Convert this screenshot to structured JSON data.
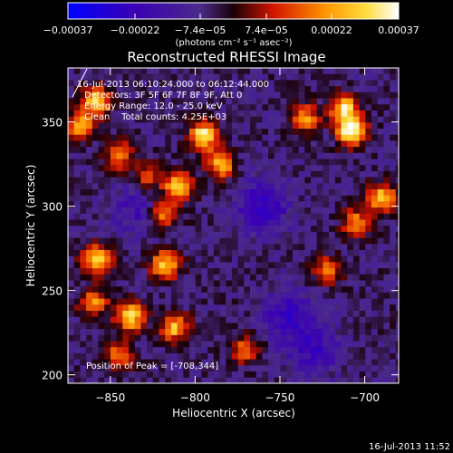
{
  "chart_data": {
    "type": "heatmap",
    "title": "Reconstructed RHESSI Image",
    "xlabel": "Heliocentric X (arcsec)",
    "ylabel": "Heliocentric Y (arcsec)",
    "xlim": [
      -875,
      -680
    ],
    "ylim": [
      195,
      382
    ],
    "x_ticks": [
      -850,
      -800,
      -750,
      -700
    ],
    "y_ticks": [
      200,
      250,
      300,
      350
    ],
    "grid": false,
    "colorbar": {
      "ticks": [
        -0.00037,
        -0.00022,
        -7.4e-05,
        7.4e-05,
        0.00022,
        0.00037
      ],
      "tick_labels": [
        "-0.00037",
        "-0.00022",
        "-7.4e-05",
        "7.4e-05",
        "0.00022",
        "0.00037"
      ],
      "range": [
        -0.00037,
        0.00037
      ],
      "unit_label": "(photons cm⁻² s⁻¹ asec⁻²)"
    },
    "annotations": [
      "16-Jul-2013 06:10:24.000 to 06:12:44.000",
      "Detectors: 3F 5F 6F 7F 8F 9F, Att 0",
      "Energy Range: 12.0 - 25.0 keV",
      "Clean    Total counts: 4.25E+03"
    ],
    "peak_label": "Position of Peak = [-708,344]",
    "peak": [
      -708,
      344
    ],
    "sources": [
      {
        "x": -708,
        "y": 344,
        "amp": 1.0
      },
      {
        "x": -712,
        "y": 358,
        "amp": 0.8
      },
      {
        "x": -795,
        "y": 342,
        "amp": 0.9
      },
      {
        "x": -785,
        "y": 325,
        "amp": 0.7
      },
      {
        "x": -810,
        "y": 312,
        "amp": 0.75
      },
      {
        "x": -818,
        "y": 296,
        "amp": 0.6
      },
      {
        "x": -858,
        "y": 362,
        "amp": 0.75
      },
      {
        "x": -868,
        "y": 348,
        "amp": 0.65
      },
      {
        "x": -845,
        "y": 330,
        "amp": 0.55
      },
      {
        "x": -858,
        "y": 268,
        "amp": 0.8
      },
      {
        "x": -818,
        "y": 265,
        "amp": 0.75
      },
      {
        "x": -838,
        "y": 235,
        "amp": 0.85
      },
      {
        "x": -812,
        "y": 228,
        "amp": 0.7
      },
      {
        "x": -845,
        "y": 212,
        "amp": 0.55
      },
      {
        "x": -860,
        "y": 243,
        "amp": 0.6
      },
      {
        "x": -690,
        "y": 305,
        "amp": 0.75
      },
      {
        "x": -705,
        "y": 290,
        "amp": 0.55
      },
      {
        "x": -722,
        "y": 262,
        "amp": 0.55
      },
      {
        "x": -735,
        "y": 352,
        "amp": 0.6
      },
      {
        "x": -770,
        "y": 215,
        "amp": 0.5
      },
      {
        "x": -828,
        "y": 318,
        "amp": 0.45
      }
    ],
    "dark_regions": [
      {
        "x": -760,
        "y": 300,
        "amp": 0.9
      },
      {
        "x": -745,
        "y": 235,
        "amp": 0.8
      },
      {
        "x": -835,
        "y": 298,
        "amp": 0.55
      },
      {
        "x": -730,
        "y": 215,
        "amp": 0.7
      }
    ]
  },
  "footer": {
    "timestamp": "16-Jul-2013 11:52"
  },
  "colors": {
    "background": "#000000",
    "text": "#ffffff",
    "colormap": [
      "#0000ff",
      "#3a00b4",
      "#4a2a8a",
      "#1a0008",
      "#d21400",
      "#ff9600",
      "#ffdc3c",
      "#ffffff"
    ]
  }
}
